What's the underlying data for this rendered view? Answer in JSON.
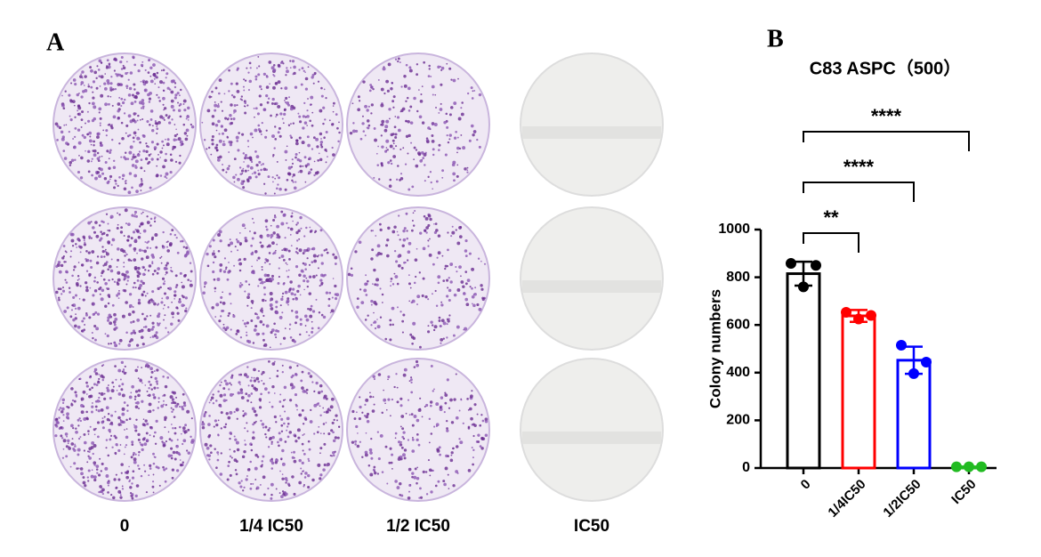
{
  "panel_a": {
    "label": "A",
    "column_labels": [
      "0",
      "1/4 IC50",
      "1/2 IC50",
      "IC50"
    ]
  },
  "chart_data": {
    "type": "bar",
    "panel_label": "B",
    "title": "C83 ASPC（500）",
    "y_label": "Colony numbers",
    "categories": [
      "0",
      "1/4IC50",
      "1/2IC50",
      "IC50"
    ],
    "values": [
      815,
      638,
      452,
      5
    ],
    "errors": [
      50,
      25,
      57,
      0
    ],
    "points": [
      [
        858,
        850,
        760
      ],
      [
        653,
        640,
        625
      ],
      [
        515,
        444,
        396
      ],
      [
        5,
        5,
        5
      ]
    ],
    "colors": [
      "#000000",
      "#ff0000",
      "#0000ff",
      "#22bb22"
    ],
    "ylim": [
      0,
      1000
    ],
    "yticks": [
      0,
      200,
      400,
      600,
      800,
      1000
    ],
    "annotations": [
      "**",
      "****",
      "****"
    ]
  }
}
